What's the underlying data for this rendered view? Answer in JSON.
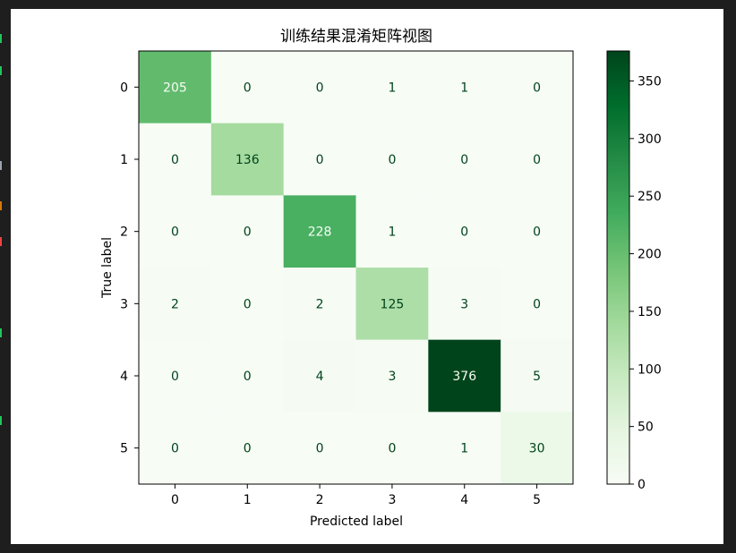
{
  "chart_data": {
    "type": "heatmap",
    "title": "训练结果混淆矩阵视图",
    "xlabel": "Predicted label",
    "ylabel": "True label",
    "x_categories": [
      "0",
      "1",
      "2",
      "3",
      "4",
      "5"
    ],
    "y_categories": [
      "0",
      "1",
      "2",
      "3",
      "4",
      "5"
    ],
    "matrix": [
      [
        205,
        0,
        0,
        1,
        1,
        0
      ],
      [
        0,
        136,
        0,
        0,
        0,
        0
      ],
      [
        0,
        0,
        228,
        1,
        0,
        0
      ],
      [
        2,
        0,
        2,
        125,
        3,
        0
      ],
      [
        0,
        0,
        4,
        3,
        376,
        5
      ],
      [
        0,
        0,
        0,
        0,
        1,
        30
      ]
    ],
    "colormap": "Greens",
    "value_range": [
      0,
      376
    ],
    "colorbar": {
      "ticks": [
        0,
        50,
        100,
        150,
        200,
        250,
        300,
        350
      ],
      "position": "right"
    },
    "grid": false
  },
  "colors": {
    "background": "#1e1e1e",
    "figure": "#ffffff",
    "cmap_low": "#f7fcf5",
    "cmap_high": "#00441b",
    "light_text": "#f7fcf5",
    "dark_text": "#00441b",
    "edge_mark_green": "#22c55e",
    "edge_mark_orange": "#d97706",
    "edge_mark_red": "#ef4444",
    "edge_mark_gray": "#9ca3af"
  }
}
